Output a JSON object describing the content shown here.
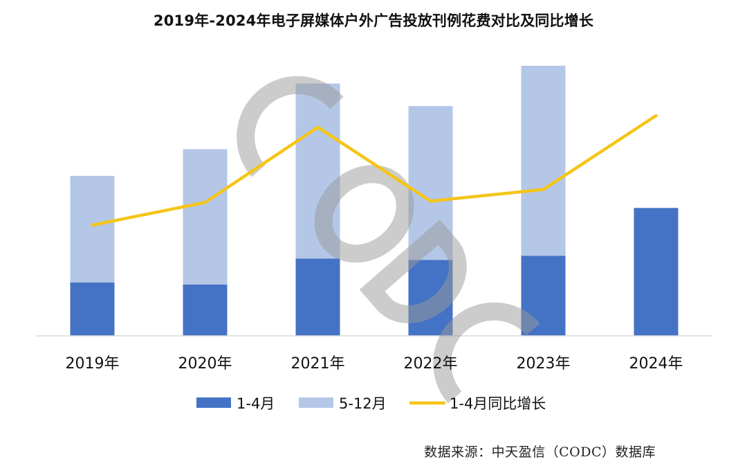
{
  "chart_data": {
    "type": "bar",
    "title": "2019年-2024年电子屏媒体户外广告投放刊例花费对比及同比增长",
    "categories": [
      "2019年",
      "2020年",
      "2021年",
      "2022年",
      "2023年",
      "2024年"
    ],
    "stacked": true,
    "series": [
      {
        "name": "1-4月",
        "kind": "bar",
        "color": "#4472C4",
        "values": [
          78,
          75,
          113,
          111,
          117,
          187
        ]
      },
      {
        "name": "5-12月",
        "kind": "bar",
        "color": "#B4C7E7",
        "values": [
          156,
          198,
          256,
          225,
          278,
          0
        ]
      },
      {
        "name": "1-4月同比增长",
        "kind": "line",
        "color": "#F5C518",
        "values": [
          162,
          195,
          305,
          197,
          214,
          322
        ]
      }
    ],
    "ylim": [
      0,
      400
    ],
    "xlabel": "",
    "ylabel": "",
    "grid": false,
    "legend_position": "bottom",
    "watermark": "CODC"
  },
  "source": "数据来源：中天盈信（CODC）数据库"
}
